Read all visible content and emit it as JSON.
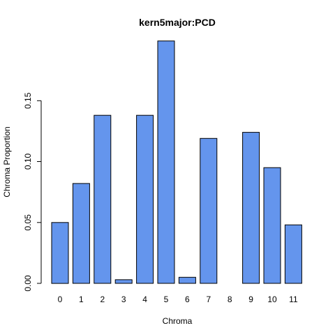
{
  "chart_data": {
    "type": "bar",
    "title": "kern5major:PCD",
    "xlabel": "Chroma",
    "ylabel": "Chroma Proportion",
    "categories": [
      "0",
      "1",
      "2",
      "3",
      "4",
      "5",
      "6",
      "7",
      "8",
      "9",
      "10",
      "11"
    ],
    "values": [
      0.05,
      0.082,
      0.138,
      0.003,
      0.138,
      0.199,
      0.005,
      0.119,
      0.0,
      0.124,
      0.095,
      0.048
    ],
    "yticks": [
      "0.00",
      "0.05",
      "0.10",
      "0.15"
    ],
    "ylim": [
      0,
      0.2
    ],
    "bar_color": "#6495ED",
    "grid": false,
    "legend": "none"
  }
}
